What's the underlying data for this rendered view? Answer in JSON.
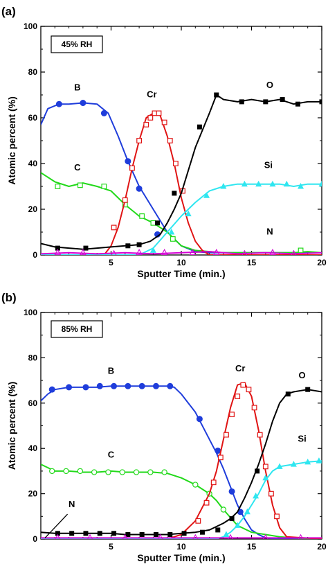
{
  "chart_data": [
    {
      "type": "line",
      "panel_label": "(a)",
      "condition": "45% RH",
      "xlabel": "Sputter Time (min.)",
      "ylabel": "Atomic percent (%)",
      "xlim": [
        0,
        20
      ],
      "ylim": [
        0,
        100
      ],
      "xticks": [
        "5",
        "10",
        "15",
        "20"
      ],
      "yticks": [
        "0",
        "20",
        "40",
        "60",
        "80",
        "100"
      ],
      "grid": false,
      "series": [
        {
          "name": "B",
          "color": "#1f3ddb",
          "marker": "circle-filled",
          "x": [
            0,
            0.5,
            1.3,
            2,
            3,
            4,
            4.8,
            5.5,
            6.2,
            7,
            8,
            9,
            10,
            11,
            12,
            13,
            14,
            15,
            16,
            17,
            18,
            19,
            20
          ],
          "y": [
            57,
            64,
            66,
            66,
            66.5,
            66,
            62,
            52,
            41,
            30,
            20,
            10,
            4,
            1.5,
            1,
            1,
            1,
            1,
            1,
            1,
            1,
            1,
            1
          ],
          "markers_x": [
            1.3,
            3.0,
            4.5,
            6.2,
            7.0,
            8.3
          ],
          "markers_y": [
            66,
            66.5,
            62,
            41,
            29,
            9
          ]
        },
        {
          "name": "C",
          "color": "#22d91a",
          "marker": "square-open",
          "x": [
            0,
            1,
            2,
            3,
            4,
            5,
            6,
            7,
            8,
            9,
            10,
            11,
            12,
            13,
            14,
            15,
            16,
            17,
            18,
            19,
            20
          ],
          "y": [
            36,
            32,
            30,
            31.5,
            30,
            28,
            22,
            17,
            14,
            10,
            4,
            2,
            1.5,
            1,
            1,
            1,
            1,
            1,
            1,
            1.5,
            1
          ],
          "markers_x": [
            1.2,
            2.8,
            4.5,
            6.0,
            7.2,
            8.0,
            9.4,
            18.5
          ],
          "markers_y": [
            30,
            30.5,
            30,
            22,
            17,
            14,
            7,
            2
          ]
        },
        {
          "name": "Cr",
          "color": "#e01414",
          "marker": "square-open",
          "x": [
            0,
            3,
            4.5,
            5,
            5.5,
            6,
            6.5,
            7,
            7.5,
            8,
            8.5,
            9,
            9.5,
            10,
            10.5,
            11,
            11.5,
            12,
            13,
            20
          ],
          "y": [
            0,
            0,
            0,
            4,
            12,
            24,
            38,
            50,
            60,
            62,
            61,
            52,
            40,
            25,
            14,
            6,
            2,
            0,
            0,
            0
          ],
          "markers_x": [
            5.2,
            6.0,
            6.5,
            7.0,
            7.5,
            7.8,
            8.1,
            8.4,
            8.8,
            9.2,
            9.6,
            10.1
          ],
          "markers_y": [
            12,
            24,
            38,
            50,
            57,
            60,
            62,
            62,
            58,
            50,
            40,
            28
          ]
        },
        {
          "name": "O",
          "color": "#000000",
          "marker": "square-filled",
          "x": [
            0,
            1,
            2,
            3,
            4,
            5,
            6,
            7,
            7.8,
            8.5,
            9,
            9.5,
            10,
            11,
            12,
            12.5,
            13,
            14,
            15,
            16,
            17,
            18,
            19,
            20
          ],
          "y": [
            5,
            3.5,
            3,
            2.5,
            3,
            3.5,
            4,
            4.5,
            6,
            9,
            14,
            20,
            27,
            47,
            62,
            70,
            68,
            67,
            68,
            67,
            68,
            66,
            67,
            67
          ],
          "markers_x": [
            1.2,
            3.2,
            6.2,
            7.0,
            8.3,
            9.5,
            11.3,
            12.5,
            14.3,
            16.0,
            17.2,
            18.3,
            20.0
          ],
          "markers_y": [
            3,
            3,
            4,
            4.5,
            14,
            27,
            56,
            70,
            67,
            67,
            68,
            66,
            67
          ]
        },
        {
          "name": "Si",
          "color": "#2fe6f0",
          "marker": "triangle-filled",
          "x": [
            0,
            7,
            8,
            9,
            10,
            11,
            12,
            13,
            14,
            15,
            16,
            17,
            18,
            19,
            20
          ],
          "y": [
            0,
            0,
            3,
            10,
            17,
            23,
            28,
            30,
            31,
            31,
            31,
            31,
            30,
            31,
            31
          ],
          "markers_x": [
            8.0,
            9.3,
            10.5,
            11.8,
            13.0,
            14.5,
            15.5,
            16.5,
            17.5,
            18.5,
            20.0
          ],
          "markers_y": [
            2,
            10,
            18,
            26,
            30,
            31,
            31,
            31,
            31,
            30,
            31
          ]
        },
        {
          "name": "N",
          "color": "#d400d4",
          "marker": "triangle-open",
          "x": [
            0,
            2,
            4,
            6,
            8,
            10,
            12,
            14,
            16,
            18,
            20
          ],
          "y": [
            0.5,
            1,
            0.5,
            1,
            0.5,
            1,
            1.5,
            0.5,
            1,
            0.5,
            1
          ],
          "markers_x": [
            1.2,
            3.0,
            5.2,
            7.0,
            8.8,
            10.8,
            12.5,
            14.5,
            16.5,
            18.0
          ],
          "markers_y": [
            1,
            1,
            0.5,
            1,
            1,
            1,
            1,
            0.5,
            1,
            0.5
          ]
        }
      ],
      "annotations": [
        {
          "text": "B",
          "x": 2.6,
          "y": 72
        },
        {
          "text": "C",
          "x": 2.6,
          "y": 37
        },
        {
          "text": "Cr",
          "x": 7.9,
          "y": 69
        },
        {
          "text": "O",
          "x": 16.3,
          "y": 73
        },
        {
          "text": "Si",
          "x": 16.2,
          "y": 38
        },
        {
          "text": "N",
          "x": 16.3,
          "y": 9
        }
      ]
    },
    {
      "type": "line",
      "panel_label": "(b)",
      "condition": "85% RH",
      "xlabel": "Sputter Time (min.)",
      "ylabel": "Atomic percent (%)",
      "xlim": [
        0,
        20
      ],
      "ylim": [
        0,
        100
      ],
      "xticks": [
        "5",
        "10",
        "15",
        "20"
      ],
      "yticks": [
        "0",
        "20",
        "40",
        "60",
        "80",
        "100"
      ],
      "grid": false,
      "series": [
        {
          "name": "B",
          "color": "#1f3ddb",
          "marker": "circle-filled",
          "x": [
            0,
            0.5,
            1,
            2,
            3,
            4,
            5,
            6,
            7,
            8,
            9,
            9.5,
            10,
            11,
            12,
            12.5,
            13,
            13.5,
            14,
            14.5,
            15,
            15.5,
            16,
            17,
            20
          ],
          "y": [
            61,
            64,
            66,
            67,
            67,
            67,
            67.5,
            67.5,
            67.5,
            67.5,
            67.5,
            67,
            64,
            56,
            44,
            38,
            31,
            23,
            15,
            9,
            4,
            2,
            0.5,
            0,
            0
          ],
          "markers_x": [
            0.8,
            2.0,
            3.2,
            4.2,
            5.2,
            6.2,
            7.2,
            8.2,
            9.2,
            11.3,
            12.6,
            13.6,
            14.2
          ],
          "markers_y": [
            66,
            67,
            67,
            67.5,
            67.5,
            67.5,
            67.5,
            67.5,
            67.5,
            53,
            39,
            21,
            12
          ]
        },
        {
          "name": "C",
          "color": "#22d91a",
          "marker": "circle-open",
          "x": [
            0,
            1,
            2,
            3,
            4,
            5,
            6,
            7,
            8,
            9,
            10,
            11,
            12,
            12.5,
            13,
            14,
            15,
            16,
            17,
            18,
            20
          ],
          "y": [
            33,
            30,
            30,
            29.5,
            29.5,
            30,
            29.5,
            29.5,
            29.5,
            29,
            27,
            24,
            20,
            17,
            13,
            6,
            3,
            2,
            1,
            0.5,
            0
          ],
          "markers_x": [
            0.8,
            1.8,
            2.8,
            3.8,
            4.8,
            5.8,
            6.8,
            7.8,
            8.8,
            11.0,
            12.0,
            13.0
          ],
          "markers_y": [
            30,
            30,
            30,
            29.5,
            29.5,
            29.5,
            29.5,
            29.5,
            29.5,
            24,
            20,
            13
          ]
        },
        {
          "name": "Cr",
          "color": "#e01414",
          "marker": "square-open",
          "x": [
            0,
            9,
            10,
            11,
            12,
            12.5,
            13,
            13.5,
            14,
            14.5,
            15,
            15.5,
            16,
            16.5,
            17,
            17.5,
            20
          ],
          "y": [
            0,
            0,
            2,
            8,
            20,
            30,
            44,
            58,
            68,
            69,
            63,
            48,
            30,
            15,
            5,
            1,
            0
          ],
          "markers_x": [
            11.2,
            11.8,
            12.3,
            12.8,
            13.2,
            13.6,
            14.0,
            14.4,
            14.8,
            15.2,
            15.6,
            16.0,
            16.4,
            16.8
          ],
          "markers_y": [
            8,
            16,
            25,
            36,
            46,
            55,
            63,
            68,
            66,
            58,
            46,
            32,
            20,
            10
          ]
        },
        {
          "name": "O",
          "color": "#000000",
          "marker": "square-filled",
          "x": [
            0,
            1,
            2,
            3,
            4,
            5,
            6,
            7,
            8,
            9,
            10,
            11,
            12,
            13,
            13.5,
            14,
            14.5,
            15,
            15.5,
            16,
            16.5,
            17,
            17.5,
            18,
            19,
            20
          ],
          "y": [
            3,
            2.5,
            2.5,
            2.5,
            2.5,
            2.5,
            2,
            2,
            2,
            2,
            2.5,
            3,
            4,
            7,
            9,
            12,
            18,
            25,
            33,
            42,
            52,
            60,
            64,
            65,
            66,
            65
          ],
          "markers_x": [
            1.2,
            2.2,
            3.2,
            4.2,
            5.2,
            6.2,
            7.2,
            8.2,
            9.2,
            10.2,
            11.5,
            12.6,
            13.6,
            15.4,
            17.6,
            19.0
          ],
          "markers_y": [
            2.5,
            2.5,
            2.5,
            2.5,
            2.5,
            2,
            2,
            2,
            2,
            2.5,
            3,
            4,
            9,
            30,
            64,
            66
          ]
        },
        {
          "name": "Si",
          "color": "#2fe6f0",
          "marker": "triangle-filled",
          "x": [
            0,
            12.5,
            13,
            13.5,
            14,
            14.5,
            15,
            15.5,
            16,
            16.5,
            17,
            18,
            19,
            20
          ],
          "y": [
            0,
            0,
            1,
            3,
            6,
            10,
            15,
            20,
            26,
            30,
            32,
            33,
            34,
            34.5
          ],
          "markers_x": [
            13.2,
            14.0,
            14.7,
            15.3,
            16.0,
            17.0,
            18.0,
            19.0,
            19.8
          ],
          "markers_y": [
            2,
            6,
            12,
            19,
            27,
            32,
            33,
            34,
            34.5
          ]
        },
        {
          "name": "N",
          "color": "#d400d4",
          "marker": "triangle-open",
          "x": [
            0,
            2,
            4,
            6,
            8,
            10,
            12,
            14,
            16,
            18,
            20
          ],
          "y": [
            0.5,
            0.5,
            0.5,
            0.5,
            0.5,
            0.5,
            0.5,
            0.5,
            0.5,
            0.5,
            0.5
          ],
          "markers_x": [
            1.2,
            3.5,
            6.0,
            8.5,
            11.0,
            13.5,
            16.0,
            18.5
          ],
          "markers_y": [
            0.5,
            0.5,
            0.5,
            0.5,
            0.5,
            0.5,
            0.5,
            0.5
          ]
        }
      ],
      "annotations": [
        {
          "text": "B",
          "x": 5.0,
          "y": 73
        },
        {
          "text": "C",
          "x": 5.0,
          "y": 36
        },
        {
          "text": "Cr",
          "x": 14.2,
          "y": 74
        },
        {
          "text": "O",
          "x": 18.6,
          "y": 71
        },
        {
          "text": "Si",
          "x": 18.6,
          "y": 43
        },
        {
          "text": "N",
          "x": 2.2,
          "y": 14
        }
      ],
      "arrow": {
        "from": [
          1.9,
          11
        ],
        "to": [
          0.3,
          0.5
        ]
      }
    }
  ]
}
